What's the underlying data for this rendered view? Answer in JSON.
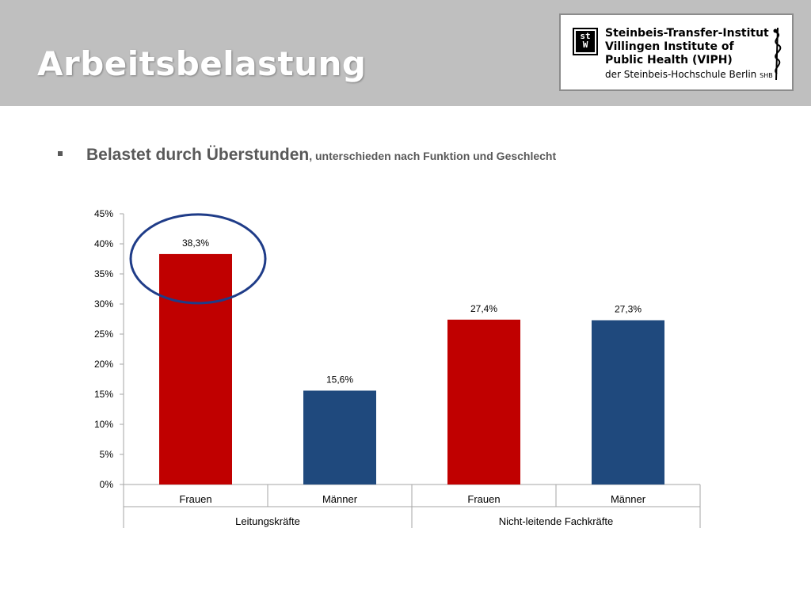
{
  "header": {
    "title": "Arbeitsbelastung",
    "logo": {
      "mark_top": "st",
      "mark_bottom": "W",
      "line1": "Steinbeis-Transfer-Institut",
      "line2": "Villingen Institute of",
      "line3": "Public Health (VIPH)",
      "line4": "der Steinbeis-Hochschule Berlin",
      "line4_suffix": "SHB"
    }
  },
  "bullet_text": {
    "main": "Belastet durch Überstunden",
    "rest": ", unterschieden nach Funktion und Geschlecht"
  },
  "chart_data": {
    "type": "bar",
    "title": "",
    "xlabel": "",
    "ylabel": "",
    "ylim": [
      0,
      45
    ],
    "yticks": [
      "0%",
      "5%",
      "10%",
      "15%",
      "20%",
      "25%",
      "30%",
      "35%",
      "40%",
      "45%"
    ],
    "grid": false,
    "categories": [
      "Frauen",
      "Männer",
      "Frauen",
      "Männer"
    ],
    "groups": [
      {
        "label": "Leitungskräfte",
        "span": 2
      },
      {
        "label": "Nicht-leitende Fachkräfte",
        "span": 2
      }
    ],
    "values": [
      38.3,
      15.6,
      27.4,
      27.3
    ],
    "value_labels": [
      "38,3%",
      "15,6%",
      "27,4%",
      "27,3%"
    ],
    "bar_colors": [
      "#c00000",
      "#1f497d",
      "#c00000",
      "#1f497d"
    ],
    "highlight_index": 0,
    "highlight_color": "#1f3c88"
  }
}
